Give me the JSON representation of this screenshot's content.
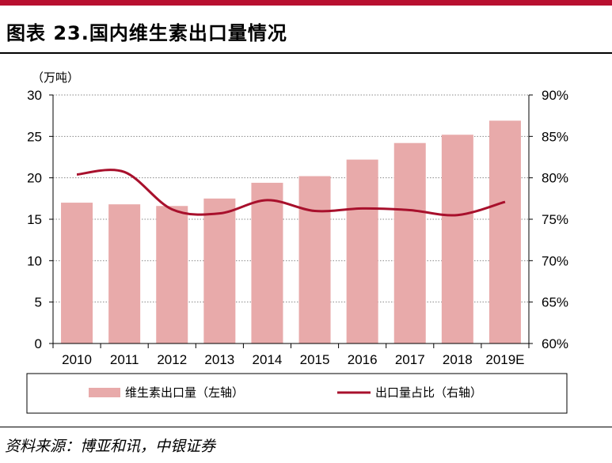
{
  "title": "图表 23.国内维生素出口量情况",
  "source": "资料来源：博亚和讯，中银证券",
  "colors": {
    "bar": "#e8aaaa",
    "line": "#a8102c",
    "accent": "#b80f2f"
  },
  "chart_data": {
    "type": "bar",
    "categories": [
      "2010",
      "2011",
      "2012",
      "2013",
      "2014",
      "2015",
      "2016",
      "2017",
      "2018",
      "2019E"
    ],
    "left_axis": {
      "unit_label": "（万吨）",
      "ylim": [
        0,
        30
      ],
      "ticks": [
        0,
        5,
        10,
        15,
        20,
        25,
        30
      ]
    },
    "right_axis": {
      "ylim": [
        60,
        90
      ],
      "ticks": [
        "60%",
        "65%",
        "70%",
        "75%",
        "80%",
        "85%",
        "90%"
      ]
    },
    "series": [
      {
        "name": "维生素出口量（左轴）",
        "type": "bar",
        "axis": "left",
        "values": [
          17.0,
          16.8,
          16.6,
          17.5,
          19.4,
          20.2,
          22.2,
          24.2,
          25.2,
          26.9
        ]
      },
      {
        "name": "出口量占比（右轴）",
        "type": "line",
        "axis": "right",
        "values": [
          80.4,
          80.7,
          76.2,
          75.7,
          77.3,
          76.0,
          76.3,
          76.1,
          75.5,
          77.1
        ]
      }
    ],
    "grid": true,
    "legend_position": "bottom"
  }
}
